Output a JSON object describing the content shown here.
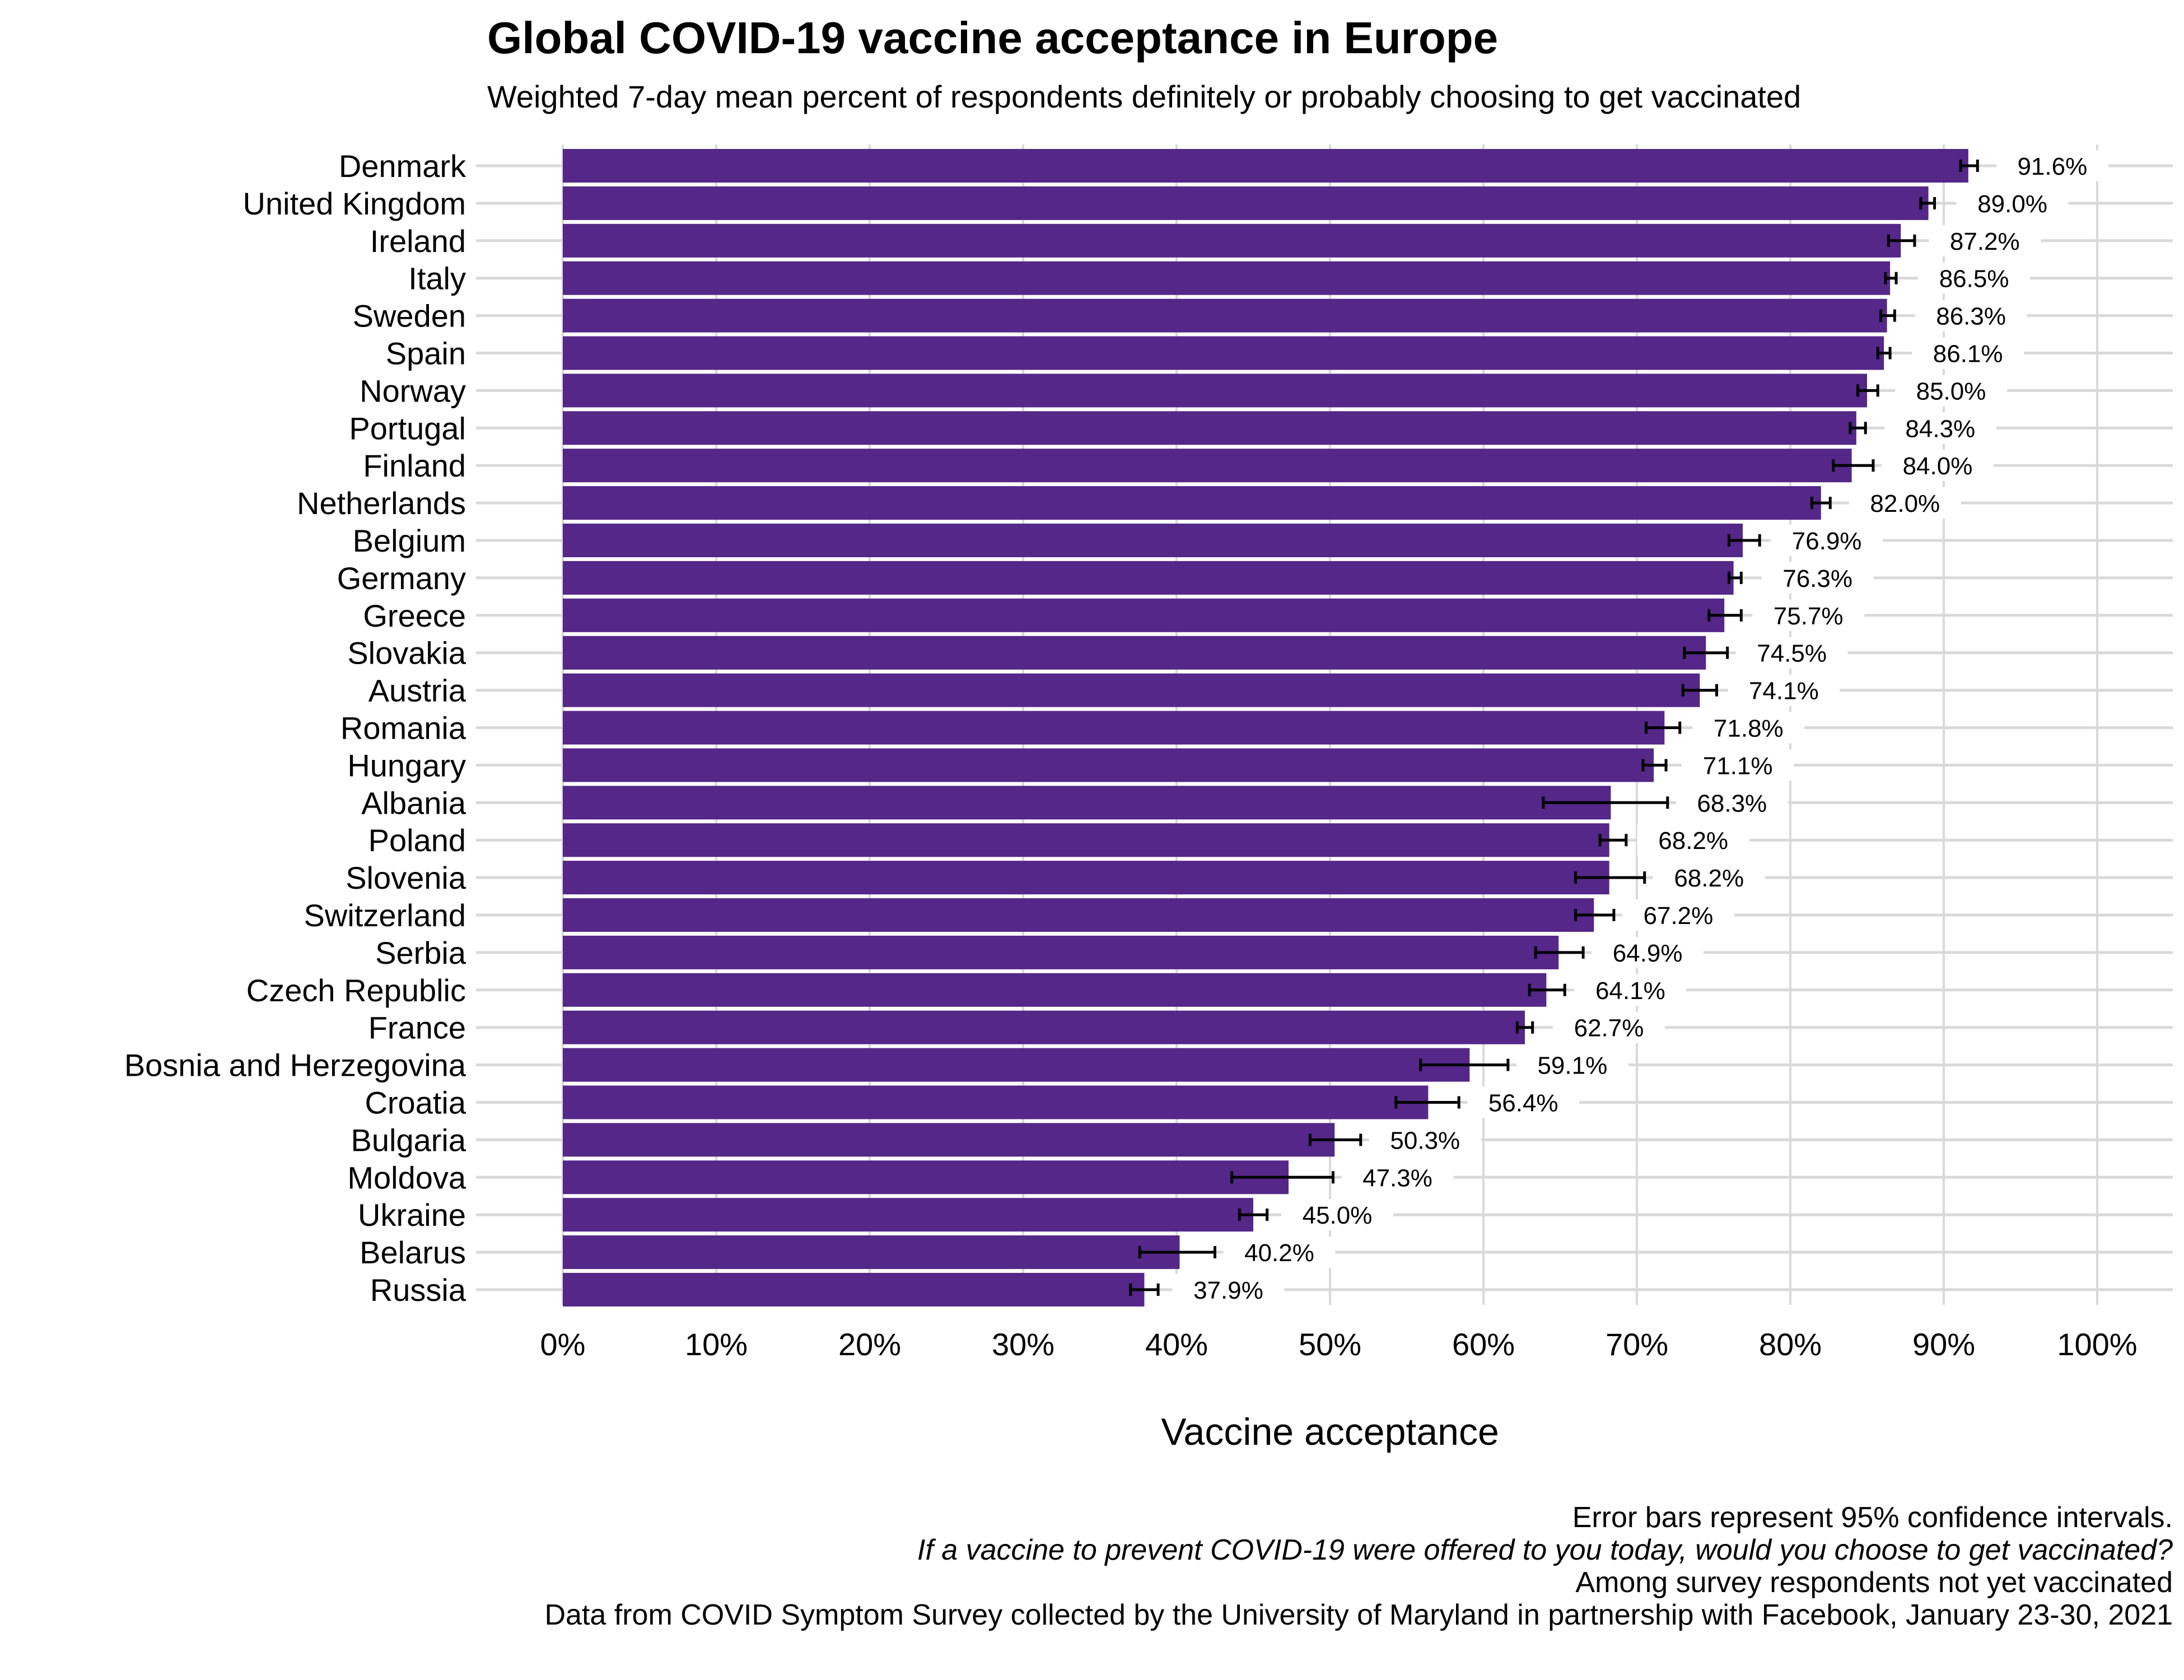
{
  "chart_data": {
    "type": "bar",
    "orientation": "horizontal",
    "title": "Global COVID-19 vaccine acceptance in Europe",
    "subtitle": "Weighted 7-day mean percent of respondents definitely or probably choosing to get vaccinated",
    "xlabel": "Vaccine acceptance",
    "ylabel": "",
    "xlim": [
      0,
      100
    ],
    "x_ticks": [
      "0%",
      "10%",
      "20%",
      "30%",
      "40%",
      "50%",
      "60%",
      "70%",
      "80%",
      "90%",
      "100%"
    ],
    "x_tick_values": [
      0,
      10,
      20,
      30,
      40,
      50,
      60,
      70,
      80,
      90,
      100
    ],
    "grid": true,
    "bar_color": "#542788",
    "error_bar_color": "#000000",
    "grid_color": "#d9d9d9",
    "categories": [
      "Denmark",
      "United Kingdom",
      "Ireland",
      "Italy",
      "Sweden",
      "Spain",
      "Norway",
      "Portugal",
      "Finland",
      "Netherlands",
      "Belgium",
      "Germany",
      "Greece",
      "Slovakia",
      "Austria",
      "Romania",
      "Hungary",
      "Albania",
      "Poland",
      "Slovenia",
      "Switzerland",
      "Serbia",
      "Czech Republic",
      "France",
      "Bosnia and Herzegovina",
      "Croatia",
      "Bulgaria",
      "Moldova",
      "Ukraine",
      "Belarus",
      "Russia"
    ],
    "values": [
      91.6,
      89.0,
      87.2,
      86.5,
      86.3,
      86.1,
      85.0,
      84.3,
      84.0,
      82.0,
      76.9,
      76.3,
      75.7,
      74.5,
      74.1,
      71.8,
      71.1,
      68.3,
      68.2,
      68.2,
      67.2,
      64.9,
      64.1,
      62.7,
      59.1,
      56.4,
      50.3,
      47.3,
      45.0,
      40.2,
      37.9
    ],
    "ci_low": [
      91.1,
      88.5,
      86.4,
      86.2,
      85.9,
      85.7,
      84.4,
      83.9,
      82.8,
      81.4,
      76.0,
      76.0,
      74.7,
      73.1,
      73.0,
      70.6,
      70.4,
      63.9,
      67.6,
      66.0,
      66.0,
      63.4,
      63.0,
      62.2,
      55.9,
      54.3,
      48.7,
      43.6,
      44.1,
      37.6,
      37.0
    ],
    "ci_high": [
      92.2,
      89.4,
      88.1,
      86.9,
      86.8,
      86.5,
      85.7,
      84.9,
      85.4,
      82.6,
      78.0,
      76.8,
      76.8,
      75.9,
      75.2,
      72.8,
      71.9,
      72.0,
      69.3,
      70.5,
      68.5,
      66.5,
      65.3,
      63.2,
      61.6,
      58.4,
      52.0,
      50.2,
      45.9,
      42.5,
      38.8
    ],
    "data_labels": [
      "91.6%",
      "89.0%",
      "87.2%",
      "86.5%",
      "86.3%",
      "86.1%",
      "85.0%",
      "84.3%",
      "84.0%",
      "82.0%",
      "76.9%",
      "76.3%",
      "75.7%",
      "74.5%",
      "74.1%",
      "71.8%",
      "71.1%",
      "68.3%",
      "68.2%",
      "68.2%",
      "67.2%",
      "64.9%",
      "64.1%",
      "62.7%",
      "59.1%",
      "56.4%",
      "50.3%",
      "47.3%",
      "45.0%",
      "40.2%",
      "37.9%"
    ],
    "captions": [
      "Error bars represent 95% confidence intervals.",
      "If a vaccine to prevent COVID-19 were offered to you today, would you choose to get vaccinated?",
      "Among survey respondents not yet vaccinated",
      "Data from COVID Symptom Survey collected by the University of Maryland in partnership with Facebook, January 23-30, 2021"
    ]
  }
}
